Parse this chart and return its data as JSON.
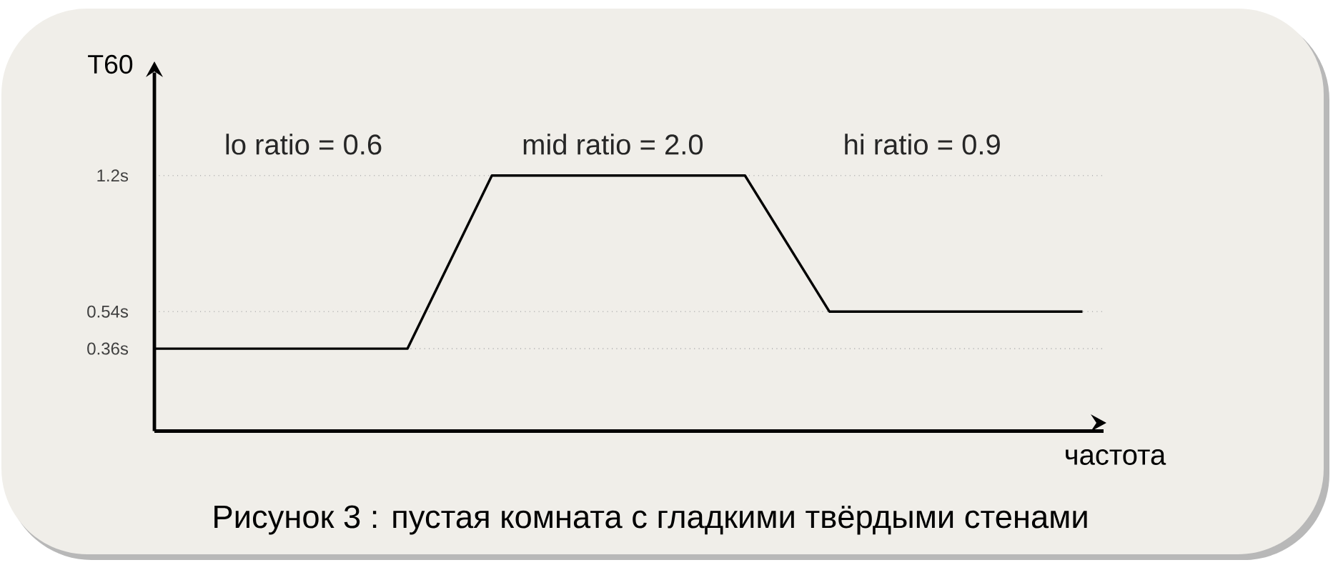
{
  "chart_data": {
    "type": "line",
    "title": "Рисунок 3 : пустая комната с гладкими твёрдыми стенами",
    "xlabel": "частота",
    "ylabel": "T60",
    "categories": [
      null,
      null,
      null,
      null,
      null,
      null,
      null,
      null,
      null,
      null,
      null,
      null
    ],
    "series": [
      {
        "color": "#000000",
        "values": [
          0.36,
          0.36,
          0.36,
          0.36,
          1.2,
          1.2,
          1.2,
          1.2,
          0.54,
          0.54,
          0.54,
          0.54
        ]
      }
    ],
    "ylim": [
      -0.04,
      1.7
    ],
    "yticks": [
      {
        "value": 0.36,
        "label": "0.36s"
      },
      {
        "value": 0.54,
        "label": "0.54s"
      },
      {
        "value": 1.2,
        "label": "1.2s"
      }
    ],
    "grid": "y",
    "marker": "none",
    "line_style": "solid",
    "annotations": [
      "lo ratio = 0.6",
      "mid ratio = 2.0",
      "hi ratio = 0.9"
    ]
  }
}
